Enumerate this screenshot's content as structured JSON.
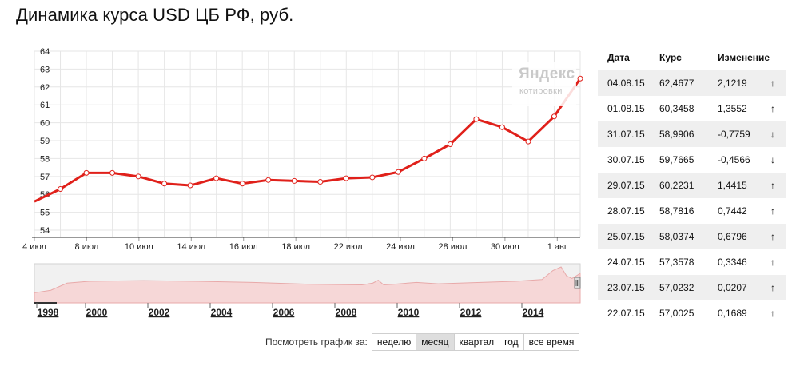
{
  "title": "Динамика курса USD ЦБ РФ, руб.",
  "watermark": {
    "brand": "Яндекс",
    "sub": "котировки"
  },
  "chart_data": {
    "type": "line",
    "x_tick_labels": [
      "4 июл",
      "8 июл",
      "10 июл",
      "14 июл",
      "16 июл",
      "18 июл",
      "22 июл",
      "24 июл",
      "28 июл",
      "30 июл",
      "1 авг"
    ],
    "y_ticks": [
      54,
      55,
      56,
      57,
      58,
      59,
      60,
      61,
      62,
      63,
      64
    ],
    "ylim": [
      53.6,
      64
    ],
    "grid": true,
    "line_color": "#e0201a",
    "series": [
      {
        "values": [
          55.6,
          56.3,
          57.2,
          57.2,
          57.0,
          56.6,
          56.5,
          56.9,
          56.6,
          56.8,
          56.75,
          56.7,
          56.9,
          56.95,
          57.25,
          58.0,
          58.8,
          60.2,
          59.75,
          58.95,
          60.35,
          62.47
        ]
      }
    ]
  },
  "overview": {
    "type": "area",
    "year_labels": [
      "1998",
      "2000",
      "2002",
      "2004",
      "2006",
      "2008",
      "2010",
      "2012",
      "2014"
    ]
  },
  "period": {
    "label": "Посмотреть график за:",
    "buttons": [
      "неделю",
      "месяц",
      "квартал",
      "год",
      "все время"
    ],
    "active": "месяц"
  },
  "table": {
    "headers": {
      "date": "Дата",
      "rate": "Курс",
      "change": "Изменение"
    },
    "rows": [
      {
        "date": "04.08.15",
        "rate": "62,4677",
        "change": "2,1219",
        "dir": "up",
        "arrow": "↑"
      },
      {
        "date": "01.08.15",
        "rate": "60,3458",
        "change": "1,3552",
        "dir": "up",
        "arrow": "↑"
      },
      {
        "date": "31.07.15",
        "rate": "58,9906",
        "change": "-0,7759",
        "dir": "down",
        "arrow": "↓"
      },
      {
        "date": "30.07.15",
        "rate": "59,7665",
        "change": "-0,4566",
        "dir": "down",
        "arrow": "↓"
      },
      {
        "date": "29.07.15",
        "rate": "60,2231",
        "change": "1,4415",
        "dir": "up",
        "arrow": "↑"
      },
      {
        "date": "28.07.15",
        "rate": "58,7816",
        "change": "0,7442",
        "dir": "up",
        "arrow": "↑"
      },
      {
        "date": "25.07.15",
        "rate": "58,0374",
        "change": "0,6796",
        "dir": "up",
        "arrow": "↑"
      },
      {
        "date": "24.07.15",
        "rate": "57,3578",
        "change": "0,3346",
        "dir": "up",
        "arrow": "↑"
      },
      {
        "date": "23.07.15",
        "rate": "57,0232",
        "change": "0,0207",
        "dir": "up",
        "arrow": "↑"
      },
      {
        "date": "22.07.15",
        "rate": "57,0025",
        "change": "0,1689",
        "dir": "up",
        "arrow": "↑"
      }
    ]
  }
}
